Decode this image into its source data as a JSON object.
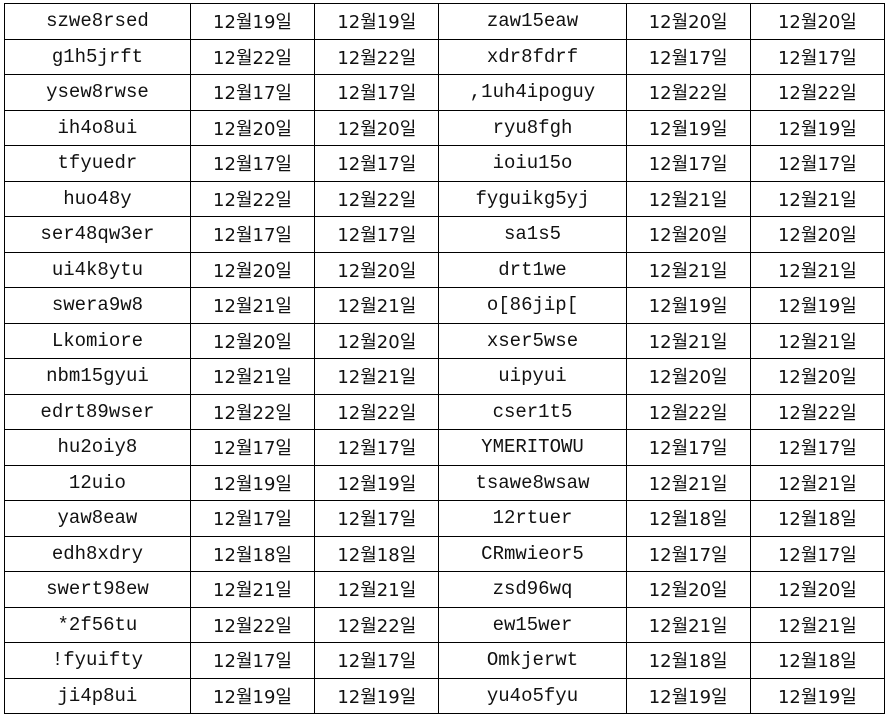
{
  "rows": [
    {
      "a": "szwe8rsed",
      "b": "12월19일",
      "c": "12월19일",
      "d": "zaw15eaw",
      "e": "12월20일",
      "f": "12월20일"
    },
    {
      "a": "g1h5jrft",
      "b": "12월22일",
      "c": "12월22일",
      "d": "xdr8fdrf",
      "e": "12월17일",
      "f": "12월17일"
    },
    {
      "a": "ysew8rwse",
      "b": "12월17일",
      "c": "12월17일",
      "d": ",1uh4ipoguy",
      "e": "12월22일",
      "f": "12월22일"
    },
    {
      "a": "ih4o8ui",
      "b": "12월20일",
      "c": "12월20일",
      "d": "ryu8fgh",
      "e": "12월19일",
      "f": "12월19일"
    },
    {
      "a": "tfyuedr",
      "b": "12월17일",
      "c": "12월17일",
      "d": "ioiu15o",
      "e": "12월17일",
      "f": "12월17일"
    },
    {
      "a": "huo48y",
      "b": "12월22일",
      "c": "12월22일",
      "d": "fyguikg5yj",
      "e": "12월21일",
      "f": "12월21일"
    },
    {
      "a": "ser48qw3er",
      "b": "12월17일",
      "c": "12월17일",
      "d": "sa1s5",
      "e": "12월20일",
      "f": "12월20일"
    },
    {
      "a": "ui4k8ytu",
      "b": "12월20일",
      "c": "12월20일",
      "d": "drt1we",
      "e": "12월21일",
      "f": "12월21일"
    },
    {
      "a": "swera9w8",
      "b": "12월21일",
      "c": "12월21일",
      "d": "o[86jip[",
      "e": "12월19일",
      "f": "12월19일"
    },
    {
      "a": "Lkomiore",
      "b": "12월20일",
      "c": "12월20일",
      "d": "xser5wse",
      "e": "12월21일",
      "f": "12월21일"
    },
    {
      "a": "nbm15gyui",
      "b": "12월21일",
      "c": "12월21일",
      "d": "uipyui",
      "e": "12월20일",
      "f": "12월20일"
    },
    {
      "a": "edrt89wser",
      "b": "12월22일",
      "c": "12월22일",
      "d": "cser1t5",
      "e": "12월22일",
      "f": "12월22일"
    },
    {
      "a": "hu2oiy8",
      "b": "12월17일",
      "c": "12월17일",
      "d": "YMERITOWU",
      "e": "12월17일",
      "f": "12월17일"
    },
    {
      "a": "12uio",
      "b": "12월19일",
      "c": "12월19일",
      "d": "tsawe8wsaw",
      "e": "12월21일",
      "f": "12월21일"
    },
    {
      "a": "yaw8eaw",
      "b": "12월17일",
      "c": "12월17일",
      "d": "12rtuer",
      "e": "12월18일",
      "f": "12월18일"
    },
    {
      "a": "edh8xdry",
      "b": "12월18일",
      "c": "12월18일",
      "d": "CRmwieor5",
      "e": "12월17일",
      "f": "12월17일"
    },
    {
      "a": "swert98ew",
      "b": "12월21일",
      "c": "12월21일",
      "d": "zsd96wq",
      "e": "12월20일",
      "f": "12월20일"
    },
    {
      "a": "*2f56tu",
      "b": "12월22일",
      "c": "12월22일",
      "d": "ew15wer",
      "e": "12월21일",
      "f": "12월21일"
    },
    {
      "a": "!fyuifty",
      "b": "12월17일",
      "c": "12월17일",
      "d": "Omkjerwt",
      "e": "12월18일",
      "f": "12월18일"
    },
    {
      "a": "ji4p8ui",
      "b": "12월19일",
      "c": "12월19일",
      "d": "yu4o5fyu",
      "e": "12월19일",
      "f": "12월19일"
    }
  ]
}
